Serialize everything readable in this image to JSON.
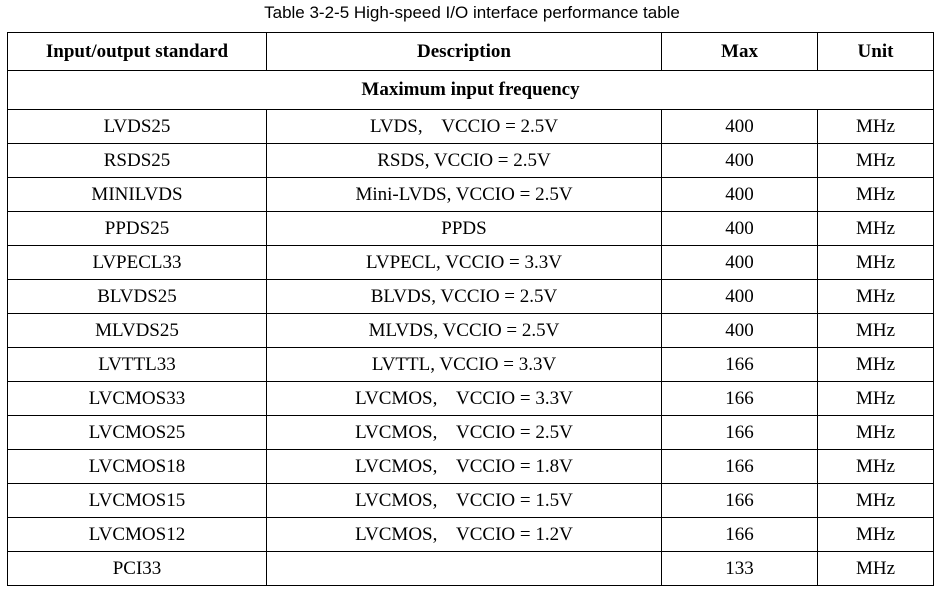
{
  "caption": "Table 3-2-5 High-speed I/O interface performance table",
  "headers": [
    "Input/output standard",
    "Description",
    "Max",
    "Unit"
  ],
  "section_title": "Maximum input frequency",
  "rows": [
    [
      "LVDS25",
      "LVDS,    VCCIO = 2.5V",
      "400",
      "MHz"
    ],
    [
      "RSDS25",
      "RSDS, VCCIO = 2.5V",
      "400",
      "MHz"
    ],
    [
      "MINILVDS",
      "Mini-LVDS, VCCIO = 2.5V",
      "400",
      "MHz"
    ],
    [
      "PPDS25",
      "PPDS",
      "400",
      "MHz"
    ],
    [
      "LVPECL33",
      "LVPECL, VCCIO = 3.3V",
      "400",
      "MHz"
    ],
    [
      "BLVDS25",
      "BLVDS, VCCIO = 2.5V",
      "400",
      "MHz"
    ],
    [
      "MLVDS25",
      "MLVDS, VCCIO = 2.5V",
      "400",
      "MHz"
    ],
    [
      "LVTTL33",
      "LVTTL, VCCIO = 3.3V",
      "166",
      "MHz"
    ],
    [
      "LVCMOS33",
      "LVCMOS,    VCCIO = 3.3V",
      "166",
      "MHz"
    ],
    [
      "LVCMOS25",
      "LVCMOS,    VCCIO = 2.5V",
      "166",
      "MHz"
    ],
    [
      "LVCMOS18",
      "LVCMOS,    VCCIO = 1.8V",
      "166",
      "MHz"
    ],
    [
      "LVCMOS15",
      "LVCMOS,    VCCIO = 1.5V",
      "166",
      "MHz"
    ],
    [
      "LVCMOS12",
      "LVCMOS,    VCCIO = 1.2V",
      "166",
      "MHz"
    ],
    [
      "PCI33",
      "",
      "133",
      "MHz"
    ]
  ]
}
